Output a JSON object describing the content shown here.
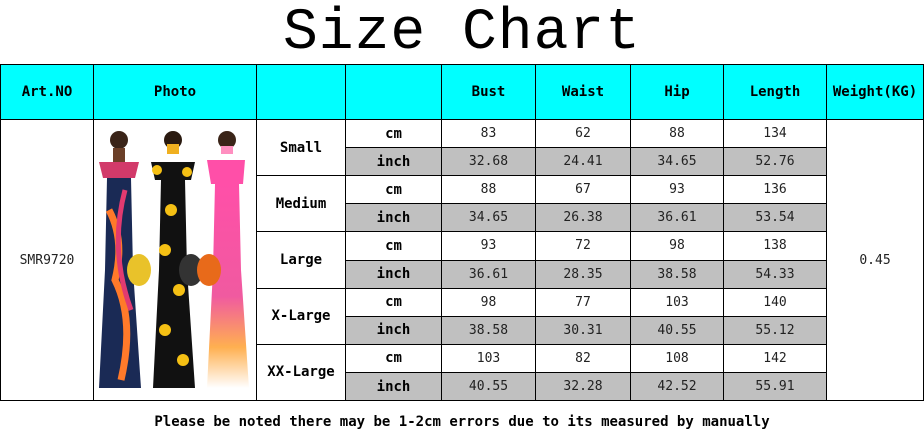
{
  "title": "Size Chart",
  "headers": {
    "art_no": "Art.NO",
    "photo": "Photo",
    "size": "",
    "unit": "",
    "bust": "Bust",
    "waist": "Waist",
    "hip": "Hip",
    "length": "Length",
    "weight": "Weight(KG)"
  },
  "art_no": "SMR9720",
  "weight": "0.45",
  "sizes": [
    {
      "name": "Small",
      "cm": {
        "unit": "cm",
        "bust": "83",
        "waist": "62",
        "hip": "88",
        "length": "134"
      },
      "inch": {
        "unit": "inch",
        "bust": "32.68",
        "waist": "24.41",
        "hip": "34.65",
        "length": "52.76"
      }
    },
    {
      "name": "Medium",
      "cm": {
        "unit": "cm",
        "bust": "88",
        "waist": "67",
        "hip": "93",
        "length": "136"
      },
      "inch": {
        "unit": "inch",
        "bust": "34.65",
        "waist": "26.38",
        "hip": "36.61",
        "length": "53.54"
      }
    },
    {
      "name": "Large",
      "cm": {
        "unit": "cm",
        "bust": "93",
        "waist": "72",
        "hip": "98",
        "length": "138"
      },
      "inch": {
        "unit": "inch",
        "bust": "36.61",
        "waist": "28.35",
        "hip": "38.58",
        "length": "54.33"
      }
    },
    {
      "name": "X-Large",
      "cm": {
        "unit": "cm",
        "bust": "98",
        "waist": "77",
        "hip": "103",
        "length": "140"
      },
      "inch": {
        "unit": "inch",
        "bust": "38.58",
        "waist": "30.31",
        "hip": "40.55",
        "length": "55.12"
      }
    },
    {
      "name": "XX-Large",
      "cm": {
        "unit": "cm",
        "bust": "103",
        "waist": "82",
        "hip": "108",
        "length": "142"
      },
      "inch": {
        "unit": "inch",
        "bust": "40.55",
        "waist": "32.28",
        "hip": "42.52",
        "length": "55.91"
      }
    }
  ],
  "footer_note": "Please be noted there may be 1-2cm errors due to its measured by manually",
  "colors": {
    "header_bg": "#00ffff",
    "inch_row_bg": "#c0c0c0"
  }
}
